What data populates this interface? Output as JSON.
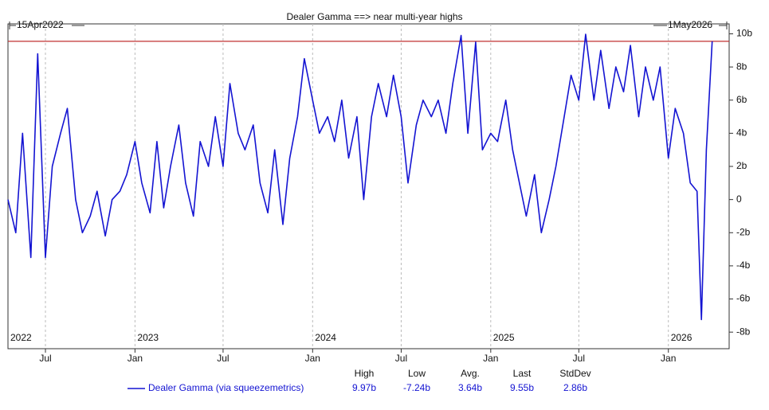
{
  "chart_data": {
    "type": "line",
    "title": "Dealer Gamma ==> near multi-year highs",
    "start_label": "15Apr2022",
    "end_label": "1May2026",
    "xlim": [
      "2022-04-15",
      "2026-05-01"
    ],
    "xticks": [
      {
        "value": "2022-07-01",
        "label": "Jul"
      },
      {
        "value": "2023-01-01",
        "label": "Jan"
      },
      {
        "value": "2023-07-01",
        "label": "Jul"
      },
      {
        "value": "2024-01-01",
        "label": "Jan"
      },
      {
        "value": "2024-07-01",
        "label": "Jul"
      },
      {
        "value": "2025-01-01",
        "label": "Jan"
      },
      {
        "value": "2025-07-01",
        "label": "Jul"
      },
      {
        "value": "2026-01-01",
        "label": "Jan"
      }
    ],
    "year_labels": [
      {
        "value": "2022-04-15",
        "label": "2022"
      },
      {
        "value": "2023-01-01",
        "label": "2023"
      },
      {
        "value": "2024-01-01",
        "label": "2024"
      },
      {
        "value": "2025-01-01",
        "label": "2025"
      },
      {
        "value": "2026-01-01",
        "label": "2026"
      }
    ],
    "ylim": [
      -9,
      10.6
    ],
    "yticks": [
      {
        "value": 10,
        "label": "10b"
      },
      {
        "value": 8,
        "label": "8b"
      },
      {
        "value": 6,
        "label": "6b"
      },
      {
        "value": 4,
        "label": "4b"
      },
      {
        "value": 2,
        "label": "2b"
      },
      {
        "value": 0,
        "label": "0"
      },
      {
        "value": -2,
        "label": "-2b"
      },
      {
        "value": -4,
        "label": "-4b"
      },
      {
        "value": -6,
        "label": "-6b"
      },
      {
        "value": -8,
        "label": "-8b"
      }
    ],
    "grid": "x",
    "x": [
      "2022-04-15",
      "2022-05-01",
      "2022-05-15",
      "2022-06-01",
      "2022-06-15",
      "2022-07-01",
      "2022-07-15",
      "2022-08-01",
      "2022-08-15",
      "2022-09-01",
      "2022-09-15",
      "2022-10-01",
      "2022-10-15",
      "2022-11-01",
      "2022-11-15",
      "2022-12-01",
      "2022-12-15",
      "2023-01-01",
      "2023-01-15",
      "2023-02-01",
      "2023-02-15",
      "2023-03-01",
      "2023-03-15",
      "2023-04-01",
      "2023-04-15",
      "2023-05-01",
      "2023-05-15",
      "2023-06-01",
      "2023-06-15",
      "2023-07-01",
      "2023-07-15",
      "2023-08-01",
      "2023-08-15",
      "2023-09-01",
      "2023-09-15",
      "2023-10-01",
      "2023-10-15",
      "2023-11-01",
      "2023-11-15",
      "2023-12-01",
      "2023-12-15",
      "2024-01-01",
      "2024-01-15",
      "2024-02-01",
      "2024-02-15",
      "2024-03-01",
      "2024-03-15",
      "2024-04-01",
      "2024-04-15",
      "2024-05-01",
      "2024-05-15",
      "2024-06-01",
      "2024-06-15",
      "2024-07-01",
      "2024-07-15",
      "2024-08-01",
      "2024-08-15",
      "2024-09-01",
      "2024-09-15",
      "2024-10-01",
      "2024-10-15",
      "2024-11-01",
      "2024-11-15",
      "2024-12-01",
      "2024-12-15",
      "2025-01-01",
      "2025-01-15",
      "2025-02-01",
      "2025-02-15",
      "2025-03-01",
      "2025-03-15",
      "2025-04-01",
      "2025-04-15",
      "2025-05-01",
      "2025-05-15",
      "2025-06-01",
      "2025-06-15",
      "2025-07-01",
      "2025-07-15",
      "2025-08-01",
      "2025-08-15",
      "2025-09-01",
      "2025-09-15",
      "2025-10-01",
      "2025-10-15",
      "2025-11-01",
      "2025-11-15",
      "2025-12-01",
      "2025-12-15",
      "2026-01-01",
      "2026-01-15",
      "2026-02-01",
      "2026-02-15",
      "2026-03-01",
      "2026-03-10",
      "2026-03-20",
      "2026-04-01"
    ],
    "series": [
      {
        "name": "Dealer Gamma (via squeezemetrics)",
        "color": "#1414d2",
        "values": [
          0,
          -2,
          4,
          -3.5,
          8.8,
          -3.5,
          2,
          4,
          5.5,
          0,
          -2,
          -1,
          0.5,
          -2.2,
          0,
          0.5,
          1.5,
          3.5,
          1,
          -0.8,
          3.5,
          -0.5,
          2,
          4.5,
          1,
          -1,
          3.5,
          2,
          5,
          2,
          7,
          4,
          3,
          4.5,
          1,
          -0.8,
          3,
          -1.5,
          2.5,
          5,
          8.5,
          6,
          4,
          5,
          3.5,
          6,
          2.5,
          5,
          0,
          5,
          7,
          5,
          7.5,
          5,
          1,
          4.5,
          6,
          5,
          6,
          4,
          7,
          9.9,
          4,
          9.5,
          3,
          4,
          3.5,
          6,
          3,
          1,
          -1,
          1.5,
          -2,
          0,
          2,
          5,
          7.5,
          6,
          9.97,
          6,
          9,
          5.5,
          8,
          6.5,
          9.3,
          5,
          8,
          6,
          8,
          2.5,
          5.5,
          4,
          1,
          0.5,
          -7.24,
          3,
          9.55
        ]
      }
    ],
    "reference_line_color": "#c03030",
    "stats": {
      "headers": [
        "High",
        "Low",
        "Avg.",
        "Last",
        "StdDev"
      ],
      "values": [
        {
          "value": 9.97,
          "label": "9.97b"
        },
        {
          "value": -7.24,
          "label": "-7.24b"
        },
        {
          "value": 3.64,
          "label": "3.64b"
        },
        {
          "value": 9.55,
          "label": "9.55b"
        },
        {
          "value": 2.86,
          "label": "2.86b"
        }
      ]
    }
  }
}
